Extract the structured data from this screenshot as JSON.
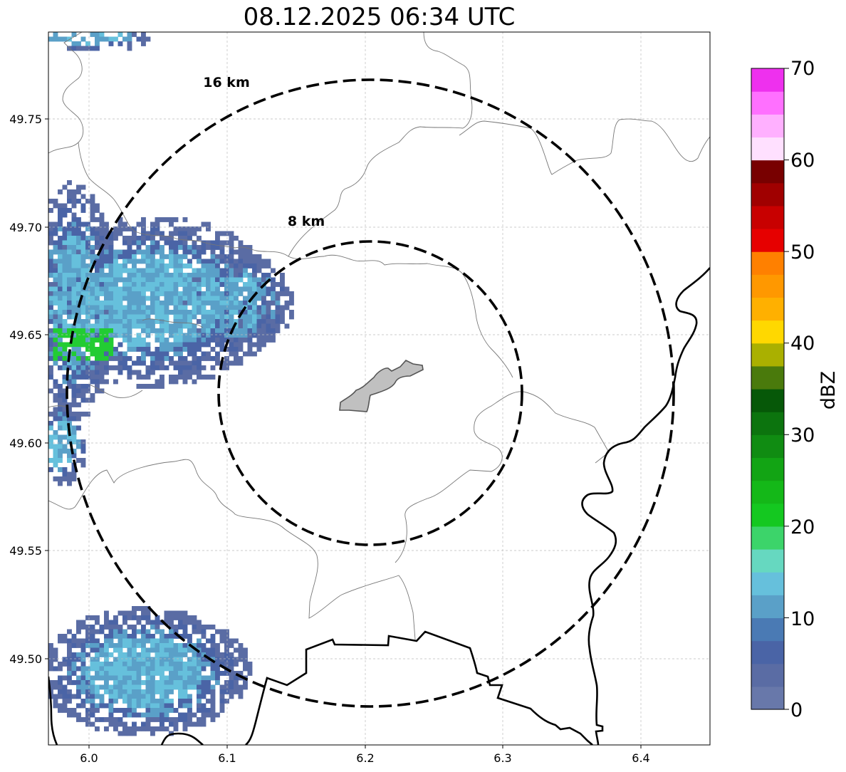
{
  "title": "08.12.2025 06:34 UTC",
  "x_ticks": [
    "6.0",
    "6.1",
    "6.2",
    "6.3",
    "6.4"
  ],
  "y_ticks": [
    "49.75",
    "49.70",
    "49.65",
    "49.60",
    "49.55",
    "49.50"
  ],
  "rings": [
    {
      "label": "8 km",
      "radius_km": 8
    },
    {
      "label": "16 km",
      "radius_km": 16
    }
  ],
  "colorbar": {
    "label": "dBZ",
    "ticks": [
      "0",
      "10",
      "20",
      "30",
      "40",
      "50",
      "60",
      "70"
    ],
    "colors": [
      "#6878aa",
      "#5a6ca4",
      "#4a64a6",
      "#4a7ab4",
      "#5aa0c8",
      "#66c0dc",
      "#66d8c0",
      "#3cd46a",
      "#14c820",
      "#14b818",
      "#12a414",
      "#108c12",
      "#0c740e",
      "#065808",
      "#4a7a0c",
      "#aab000",
      "#ffd800",
      "#ffb000",
      "#ff9800",
      "#ff8000",
      "#e60000",
      "#c80000",
      "#a00000",
      "#780000",
      "#ffe0ff",
      "#ffb0ff",
      "#ff70ff",
      "#ee30ee"
    ]
  },
  "echo_colors": {
    "low": "#5a6ca4",
    "mid": "#4a64a6",
    "light": "#5aa0c8",
    "cyan": "#66c0dc",
    "green": "#22cc33"
  }
}
